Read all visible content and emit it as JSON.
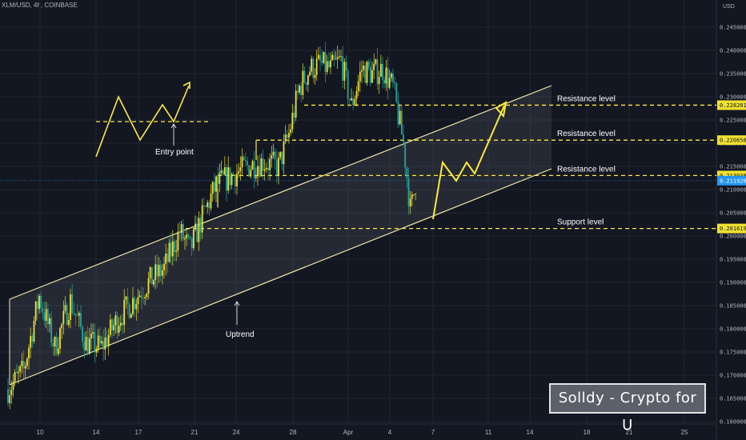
{
  "header": {
    "symbol": "XLM/USD, 4h, COINBASE",
    "currency": "USD"
  },
  "watermark": {
    "text": "Solldy - Crypto for U"
  },
  "colors": {
    "background": "#131722",
    "grid": "#1f2430",
    "candle_up": "#f0e130",
    "candle_down": "#26a69a",
    "channel": "#f5e8a6",
    "annotation": "#ffeb3b",
    "price_label_bg": "#f0e130",
    "current_price_bg": "#2196f3"
  },
  "chart_data": {
    "type": "candlestick",
    "ylim": [
      0.16,
      0.2455
    ],
    "y_ticks": [
      "0.160000",
      "0.165000",
      "0.170000",
      "0.175000",
      "0.180000",
      "0.185000",
      "0.190000",
      "0.195000",
      "0.200000",
      "0.205000",
      "0.210000",
      "0.215000",
      "0.220000",
      "0.225000",
      "0.230000",
      "0.235000",
      "0.240000",
      "0.245000"
    ],
    "x_ticks": [
      "10",
      "14",
      "17",
      "21",
      "24",
      "28",
      "Apr",
      "4",
      "7",
      "11",
      "14",
      "18",
      "21",
      "25"
    ],
    "anchors": [
      {
        "d": 0,
        "p": 0.167
      },
      {
        "d": 1.5,
        "p": 0.171
      },
      {
        "d": 3,
        "p": 0.187
      },
      {
        "d": 4.5,
        "p": 0.176
      },
      {
        "d": 6,
        "p": 0.186
      },
      {
        "d": 7.5,
        "p": 0.177
      },
      {
        "d": 9,
        "p": 0.176
      },
      {
        "d": 10.5,
        "p": 0.182
      },
      {
        "d": 12,
        "p": 0.186
      },
      {
        "d": 13.5,
        "p": 0.19
      },
      {
        "d": 15,
        "p": 0.193
      },
      {
        "d": 16.5,
        "p": 0.201
      },
      {
        "d": 17.5,
        "p": 0.197
      },
      {
        "d": 18.5,
        "p": 0.203
      },
      {
        "d": 20,
        "p": 0.211
      },
      {
        "d": 21.5,
        "p": 0.213
      },
      {
        "d": 23,
        "p": 0.215
      },
      {
        "d": 24.5,
        "p": 0.216
      },
      {
        "d": 26,
        "p": 0.215
      },
      {
        "d": 27,
        "p": 0.222
      },
      {
        "d": 28,
        "p": 0.232
      },
      {
        "d": 29,
        "p": 0.236
      },
      {
        "d": 30,
        "p": 0.237
      },
      {
        "d": 31,
        "p": 0.236
      },
      {
        "d": 32,
        "p": 0.238
      },
      {
        "d": 33,
        "p": 0.228
      },
      {
        "d": 34,
        "p": 0.236
      },
      {
        "d": 35,
        "p": 0.235
      },
      {
        "d": 36,
        "p": 0.236
      },
      {
        "d": 37,
        "p": 0.232
      },
      {
        "d": 38,
        "p": 0.22
      },
      {
        "d": 38.7,
        "p": 0.205
      },
      {
        "d": 39.2,
        "p": 0.212
      }
    ],
    "price_levels": [
      {
        "value": 0.228201,
        "label": "0.228201",
        "text": "Resistance level"
      },
      {
        "value": 0.220658,
        "label": "0.220658",
        "text": "Resistance level"
      },
      {
        "value": 0.213038,
        "label": "0.213038",
        "text": "Resistance level"
      },
      {
        "value": 0.201619,
        "label": "0.201619",
        "text": "Support level"
      }
    ],
    "current_price": {
      "value": 0.211926,
      "label": "0.211926"
    },
    "annotations": {
      "uptrend": "Uptrend",
      "entry_point": "Entry point"
    }
  }
}
